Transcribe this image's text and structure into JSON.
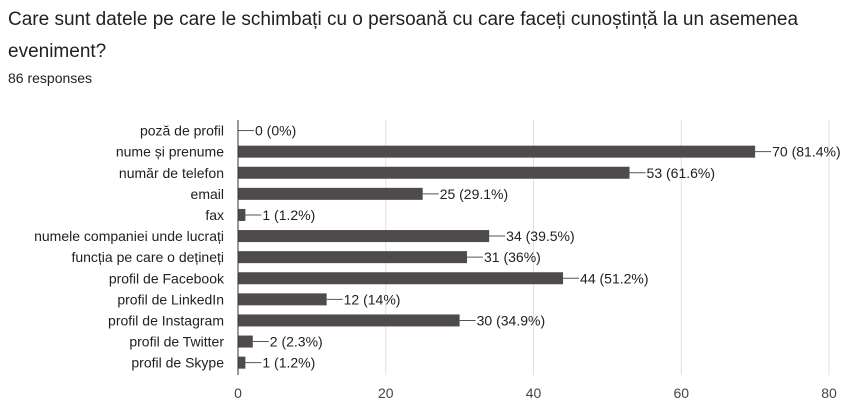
{
  "question": {
    "title": "Care sunt datele pe care le schimbați cu o persoană cu care faceți cunoștință la un asemenea eveniment?",
    "responses": "86 responses"
  },
  "colors": {
    "bar": "#4f4a4d",
    "grid": "#e0e0e0",
    "axis": "#333333"
  },
  "chart_data": {
    "type": "bar",
    "orientation": "horizontal",
    "categories": [
      "poză de profil",
      "nume și prenume",
      "număr de telefon",
      "email",
      "fax",
      "numele companiei unde lucrați",
      "funcția pe care o dețineți",
      "profil de Facebook",
      "profil de LinkedIn",
      "profil de Instagram",
      "profil de Twitter",
      "profil de Skype"
    ],
    "values": [
      0,
      70,
      53,
      25,
      1,
      34,
      31,
      44,
      12,
      30,
      2,
      1
    ],
    "value_labels": [
      "0 (0%)",
      "70 (81.4%)",
      "53 (61.6%)",
      "25 (29.1%)",
      "1 (1.2%)",
      "34 (39.5%)",
      "31 (36%)",
      "44 (51.2%)",
      "12 (14%)",
      "30 (34.9%)",
      "2 (2.3%)",
      "1 (1.2%)"
    ],
    "xlim": [
      0,
      80
    ],
    "xticks": [
      0,
      20,
      40,
      60,
      80
    ],
    "grid": true
  }
}
